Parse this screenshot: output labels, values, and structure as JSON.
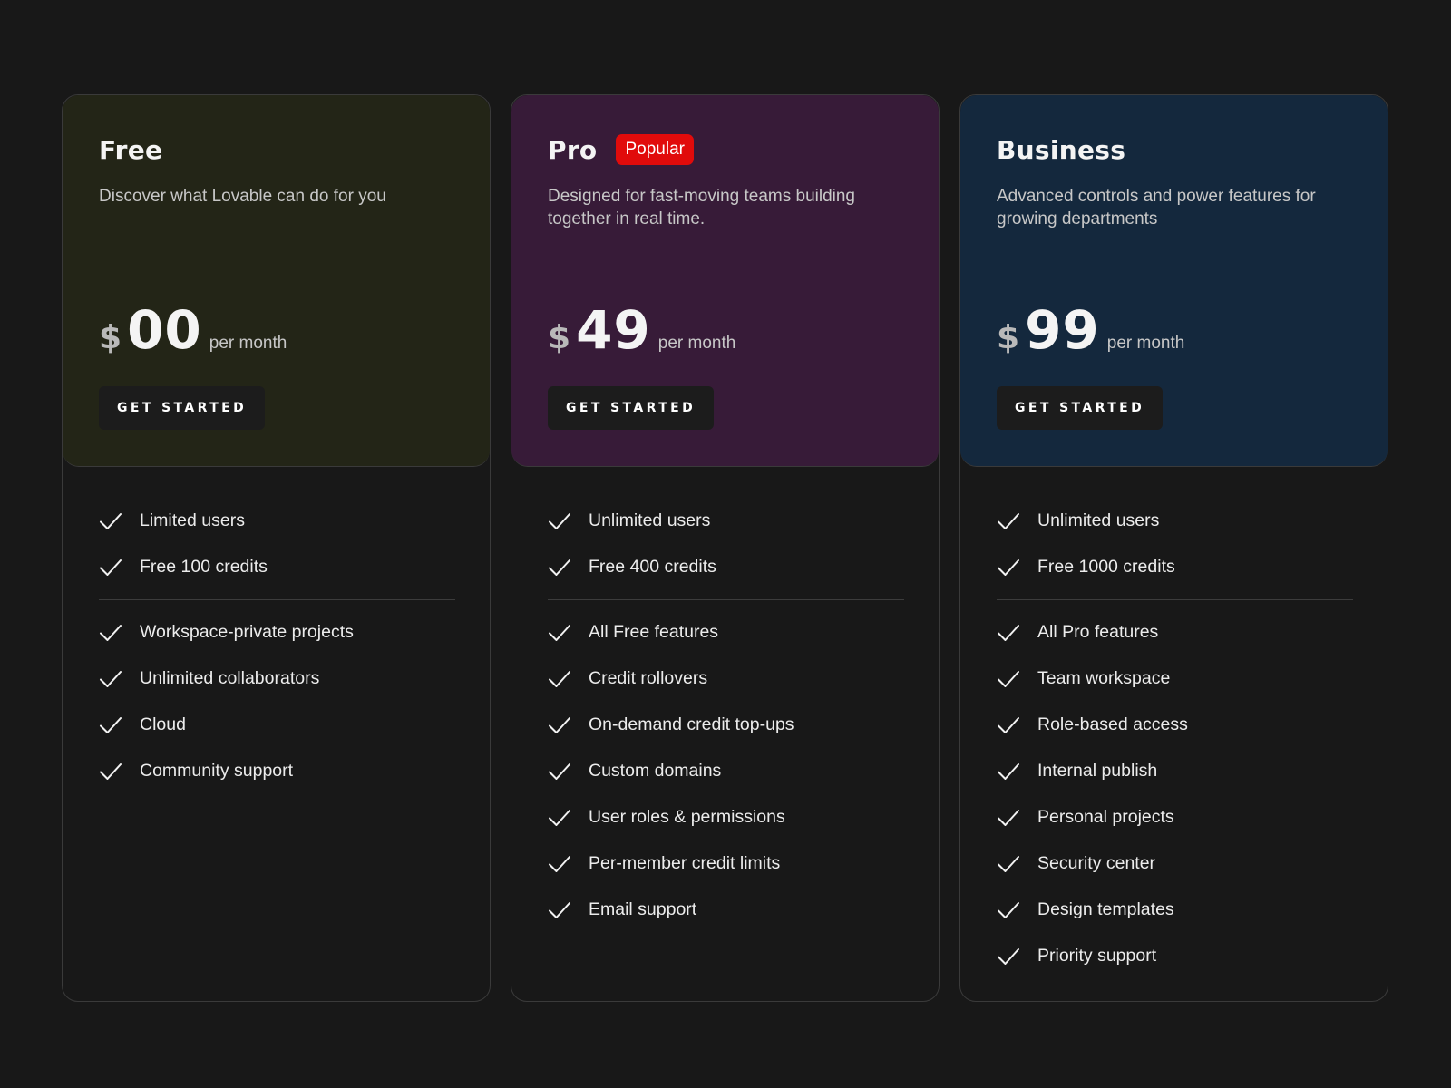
{
  "plans": [
    {
      "name": "Free",
      "badge": "",
      "description": "Discover what Lovable can do for you",
      "currency": "$",
      "amount": "00",
      "period": "per month",
      "cta": "GET STARTED",
      "color": "#232517",
      "features_primary": [
        "Limited users",
        "Free 100 credits"
      ],
      "features_secondary": [
        "Workspace-private projects",
        "Unlimited collaborators",
        "Cloud",
        "Community support"
      ]
    },
    {
      "name": "Pro",
      "badge": "Popular",
      "description": "Designed for fast-moving teams building together in real time.",
      "currency": "$",
      "amount": "49",
      "period": "per month",
      "cta": "GET STARTED",
      "color": "#371b38",
      "features_primary": [
        "Unlimited users",
        "Free 400 credits"
      ],
      "features_secondary": [
        "All Free features",
        "Credit rollovers",
        "On-demand credit top-ups",
        "Custom domains",
        "User roles & permissions",
        "Per-member credit limits",
        "Email support"
      ]
    },
    {
      "name": "Business",
      "badge": "",
      "description": "Advanced controls and power features for growing departments",
      "currency": "$",
      "amount": "99",
      "period": "per month",
      "cta": "GET STARTED",
      "color": "#14283d",
      "features_primary": [
        "Unlimited users",
        "Free 1000 credits"
      ],
      "features_secondary": [
        "All Pro features",
        "Team workspace",
        "Role-based access",
        "Internal publish",
        "Personal projects",
        "Security center",
        "Design templates",
        "Priority support"
      ]
    }
  ],
  "icons": {
    "feature": "checkmark-icon"
  },
  "colors": {
    "badge": "#e10b0b",
    "background": "#181818"
  }
}
